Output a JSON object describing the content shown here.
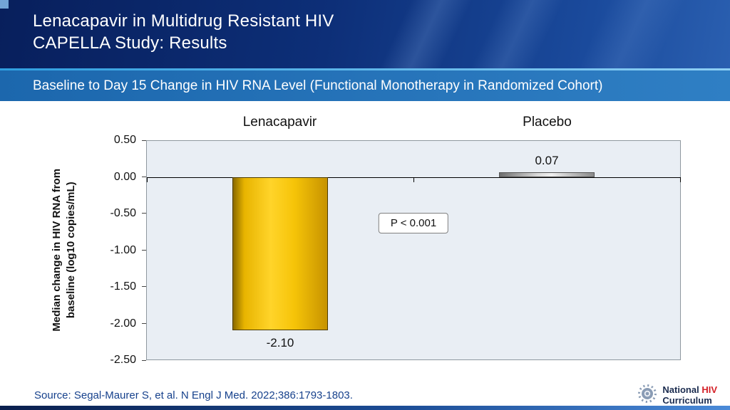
{
  "header": {
    "title_line1": "Lenacapavir in Multidrug Resistant HIV",
    "title_line2": "CAPELLA Study: Results",
    "subtitle": "Baseline to Day 15 Change in HIV RNA Level (Functional Monotherapy in Randomized Cohort)"
  },
  "chart_data": {
    "type": "bar",
    "categories": [
      "Lenacapavir",
      "Placebo"
    ],
    "values": [
      -2.1,
      0.07
    ],
    "value_labels": [
      "-2.10",
      "0.07"
    ],
    "ylabel": "Median change in HIV RNA from baseline (log10 copies/mL)",
    "ylabel_lines": [
      "Median change in HIV RNA from",
      "baseline (log10 copies/mL)"
    ],
    "ylim": [
      -2.5,
      0.5
    ],
    "yticks": [
      0.5,
      0.0,
      -0.5,
      -1.0,
      -1.5,
      -2.0,
      -2.5
    ],
    "ytick_labels": [
      "0.50",
      "0.00",
      "-0.50",
      "-1.00",
      "-1.50",
      "-2.00",
      "-2.50"
    ],
    "annotation": "P < 0.001",
    "bar_colors": [
      "#f5c211",
      "#b5b5b5"
    ],
    "grid": false,
    "legend": null,
    "plot_background": "#e9eef4"
  },
  "footer": {
    "source": "Source: Segal-Maurer S, et al. N Engl J Med. 2022;386:1793-1803."
  },
  "logo": {
    "national": "National",
    "hiv": "HIV",
    "curriculum": "Curriculum"
  },
  "colors": {
    "header_blue_dark": "#081f5c",
    "header_blue_light": "#2a5fb0",
    "subtitle_blue": "#2272b8",
    "accent_cyan": "#3fa9e0",
    "source_text": "#16418c",
    "logo_red": "#d42027"
  }
}
